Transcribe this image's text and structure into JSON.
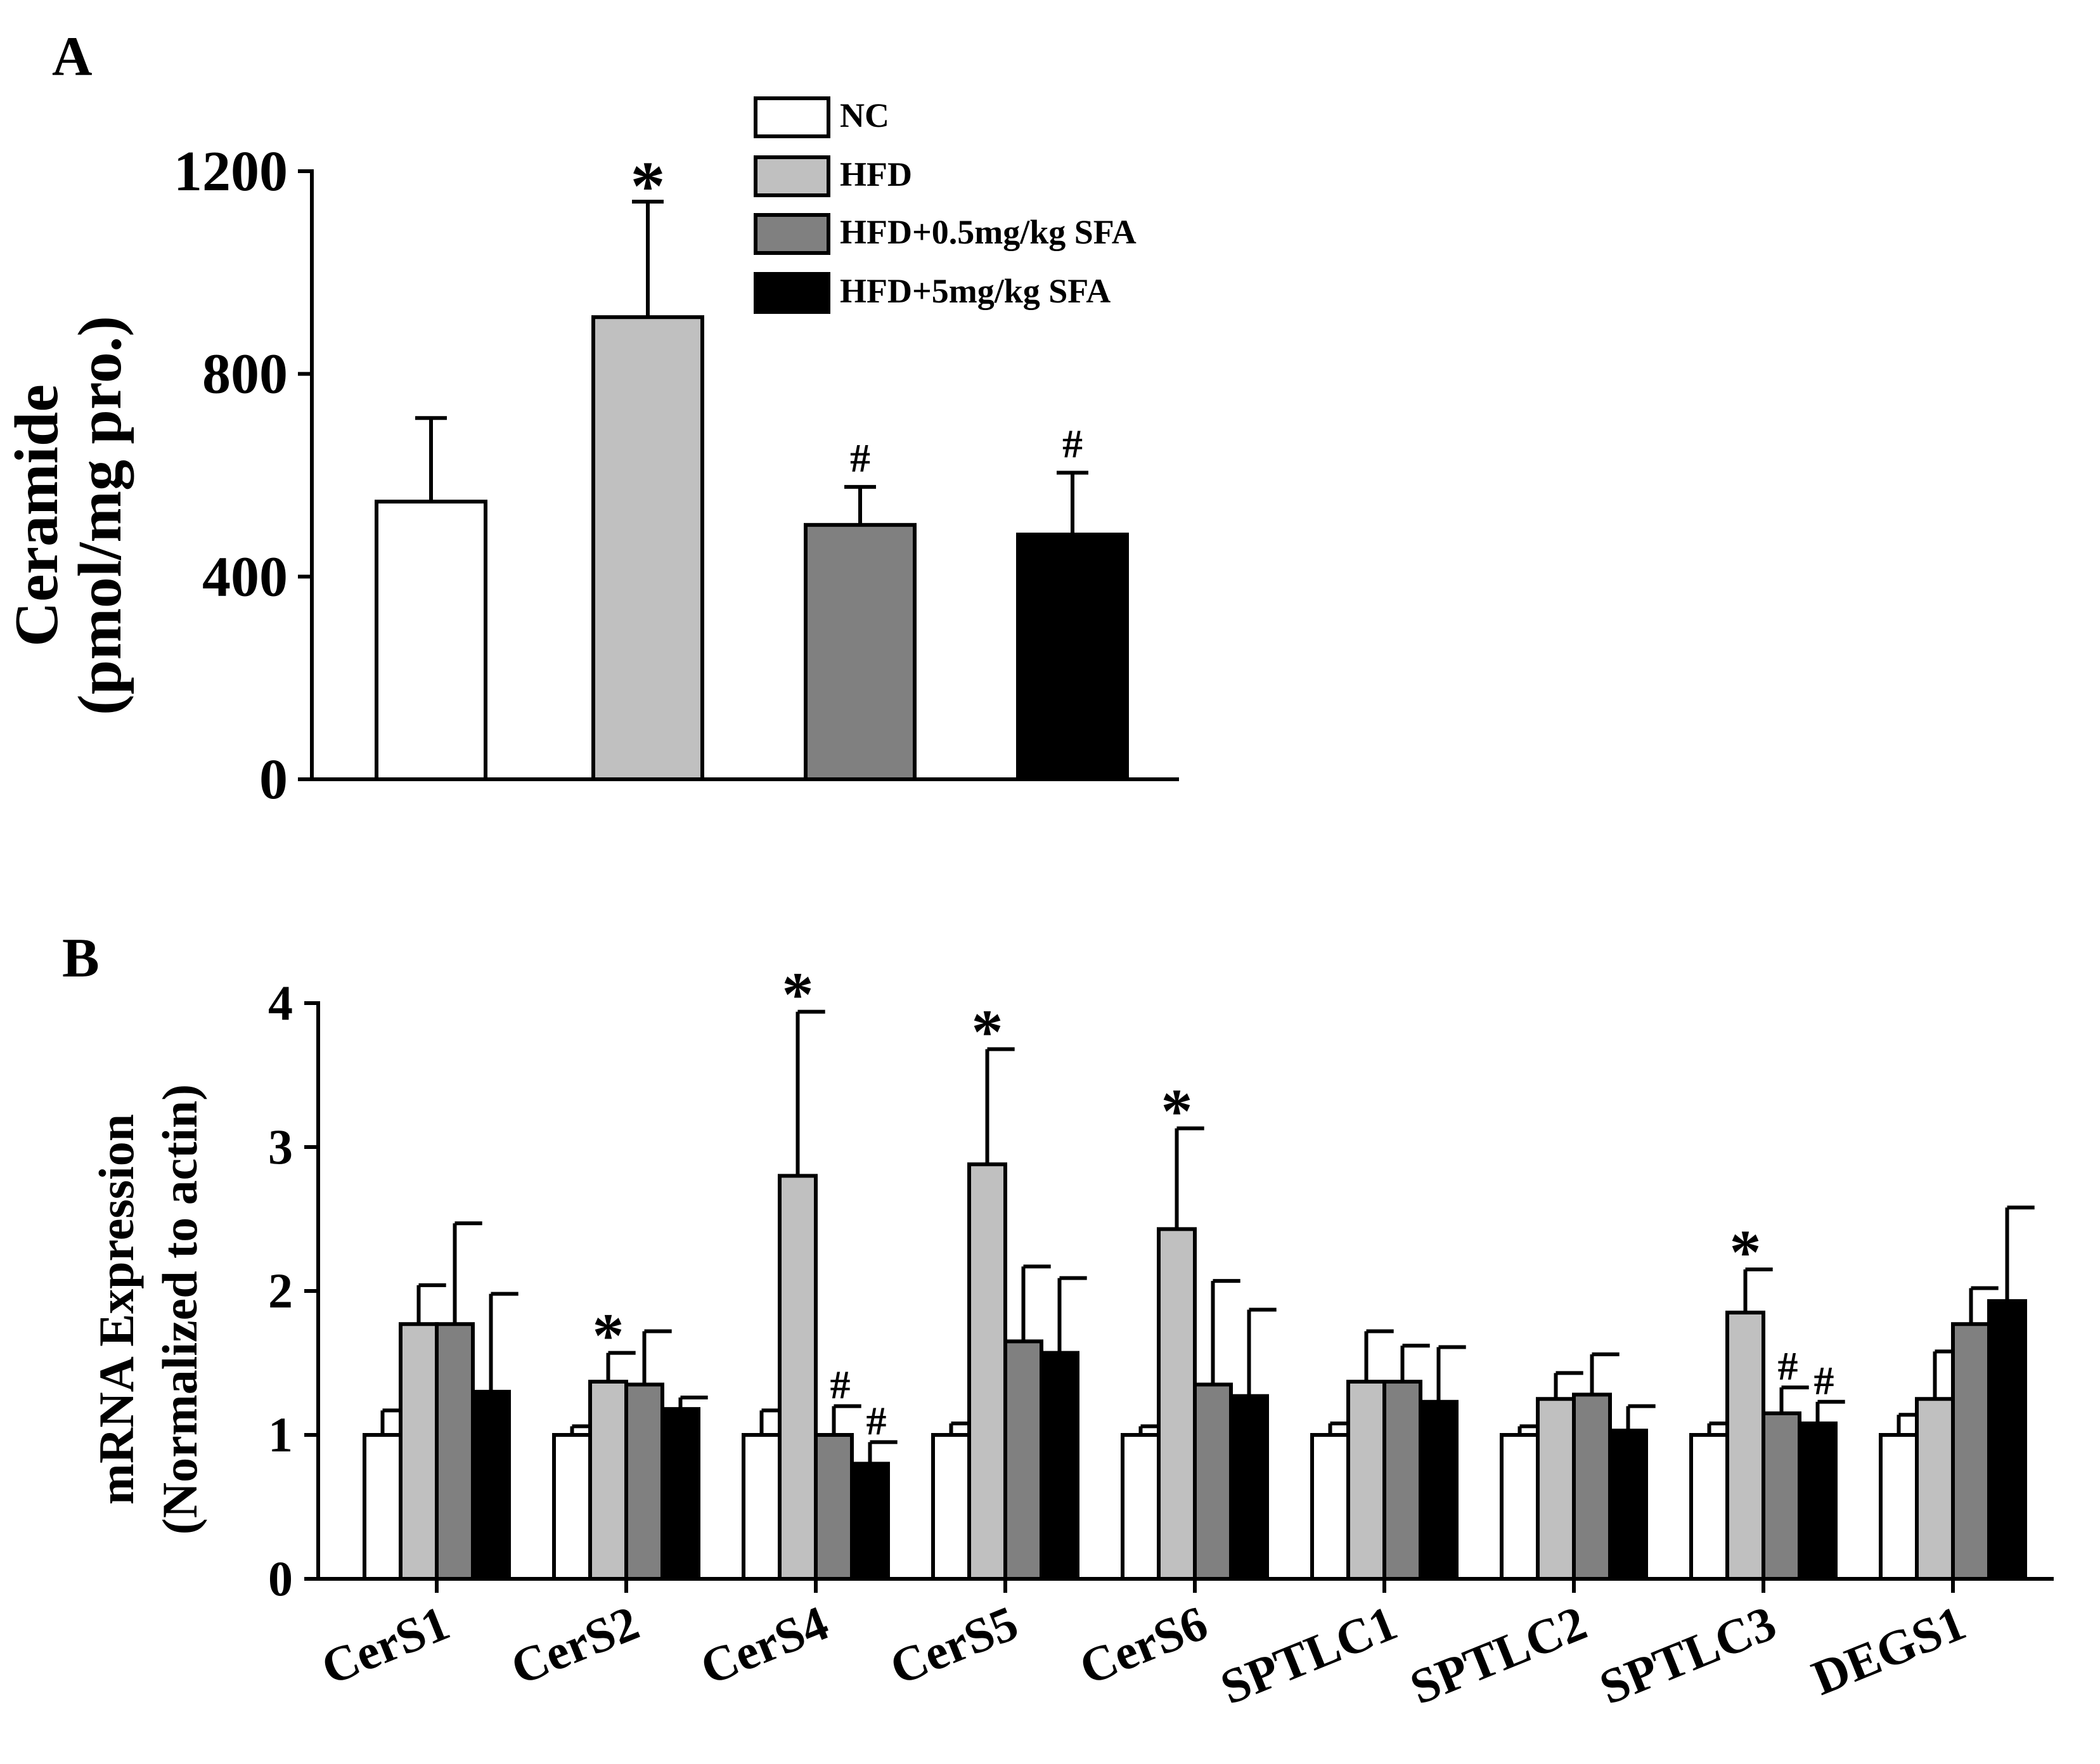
{
  "colors": {
    "NC": "#ffffff",
    "HFD": "#c0c0c0",
    "HFD_low": "#808080",
    "HFD_high": "#000000",
    "axis": "#000000"
  },
  "legend": {
    "entries": [
      {
        "key": "NC",
        "label": "NC",
        "color": "#ffffff"
      },
      {
        "key": "HFD",
        "label": "HFD",
        "color": "#c0c0c0"
      },
      {
        "key": "HFD_low",
        "label": "HFD+0.5mg/kg SFA",
        "color": "#808080"
      },
      {
        "key": "HFD_high",
        "label": "HFD+5mg/kg SFA",
        "color": "#000000"
      }
    ]
  },
  "chart_data": [
    {
      "panel_label": "A",
      "type": "bar",
      "ylabel_line1": "Ceramide",
      "ylabel_line2": "(pmol/mg pro.)",
      "ylim": [
        0,
        1200
      ],
      "yticks": [
        0,
        400,
        800,
        1200
      ],
      "ytick_labels": [
        "0",
        "400",
        "800",
        "1200"
      ],
      "categories": [
        "NC",
        "HFD",
        "HFD+0.5mg/kg SFA",
        "HFD+5mg/kg SFA"
      ],
      "values": [
        548,
        912,
        502,
        483
      ],
      "errors": [
        165,
        228,
        75,
        122
      ],
      "colors": [
        "#ffffff",
        "#c0c0c0",
        "#808080",
        "#000000"
      ],
      "annotations": [
        "",
        "*",
        "#",
        "#"
      ]
    },
    {
      "panel_label": "B",
      "type": "bar",
      "ylabel_line1": "mRNA Expression",
      "ylabel_line2": "(Normalized to actin)",
      "ylim": [
        0,
        4
      ],
      "yticks": [
        0,
        1,
        2,
        3,
        4
      ],
      "ytick_labels": [
        "0",
        "1",
        "2",
        "3",
        "4"
      ],
      "categories": [
        "CerS1",
        "CerS2",
        "CerS4",
        "CerS5",
        "CerS6",
        "SPTLC1",
        "SPTLC2",
        "SPTLC3",
        "DEGS1"
      ],
      "series": [
        {
          "name": "NC",
          "color": "#ffffff",
          "values": [
            1.0,
            1.0,
            1.0,
            1.0,
            1.0,
            1.0,
            1.0,
            1.0,
            1.0
          ],
          "errors": [
            0.17,
            0.06,
            0.17,
            0.08,
            0.06,
            0.08,
            0.06,
            0.08,
            0.14
          ],
          "annotations": [
            "",
            "",
            "",
            "",
            "",
            "",
            "",
            "",
            ""
          ]
        },
        {
          "name": "HFD",
          "color": "#c0c0c0",
          "values": [
            1.77,
            1.37,
            2.8,
            2.88,
            2.43,
            1.37,
            1.25,
            1.85,
            1.25
          ],
          "errors": [
            0.27,
            0.2,
            1.14,
            0.8,
            0.7,
            0.35,
            0.18,
            0.3,
            0.33
          ],
          "annotations": [
            "",
            "*",
            "*",
            "*",
            "*",
            "",
            "",
            "*",
            ""
          ]
        },
        {
          "name": "HFD+0.5mg/kg SFA",
          "color": "#808080",
          "values": [
            1.77,
            1.35,
            1.0,
            1.65,
            1.35,
            1.37,
            1.28,
            1.15,
            1.77
          ],
          "errors": [
            0.7,
            0.37,
            0.2,
            0.52,
            0.72,
            0.25,
            0.28,
            0.18,
            0.25
          ],
          "annotations": [
            "",
            "",
            "#",
            "",
            "",
            "",
            "",
            "#",
            ""
          ]
        },
        {
          "name": "HFD+5mg/kg SFA",
          "color": "#000000",
          "values": [
            1.3,
            1.18,
            0.8,
            1.57,
            1.27,
            1.23,
            1.03,
            1.08,
            1.93
          ],
          "errors": [
            0.68,
            0.08,
            0.15,
            0.52,
            0.6,
            0.38,
            0.17,
            0.15,
            0.65
          ],
          "annotations": [
            "",
            "",
            "#",
            "",
            "",
            "",
            "",
            "#",
            ""
          ]
        }
      ]
    }
  ]
}
